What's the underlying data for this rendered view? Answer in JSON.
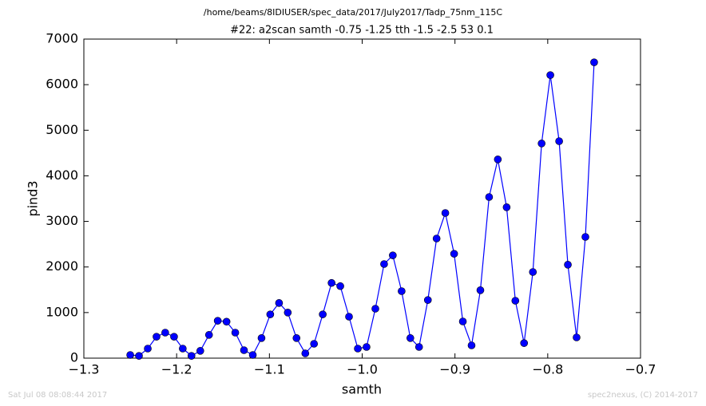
{
  "header": {
    "file": "/home/beams/8IDIUSER/spec_data/2017/July2017/Tadp_75nm_115C"
  },
  "chart_data": {
    "type": "line",
    "title": "#22: a2scan  samth -0.75 -1.25  tth -1.5 -2.5  53 0.1",
    "x_label": "samth",
    "y_label": "pind3",
    "x": [
      -1.25,
      -1.2406,
      -1.2311,
      -1.2217,
      -1.2123,
      -1.2028,
      -1.1934,
      -1.184,
      -1.1745,
      -1.1651,
      -1.1557,
      -1.1462,
      -1.1368,
      -1.1274,
      -1.1179,
      -1.1085,
      -1.0991,
      -1.0896,
      -1.0802,
      -1.0708,
      -1.0613,
      -1.0519,
      -1.0425,
      -1.033,
      -1.0236,
      -1.0142,
      -1.0047,
      -0.9953,
      -0.9858,
      -0.9764,
      -0.967,
      -0.9575,
      -0.9481,
      -0.9387,
      -0.9292,
      -0.9198,
      -0.9104,
      -0.9009,
      -0.8915,
      -0.8821,
      -0.8726,
      -0.8632,
      -0.8538,
      -0.8443,
      -0.8349,
      -0.8255,
      -0.816,
      -0.8066,
      -0.7972,
      -0.7877,
      -0.7783,
      -0.7689,
      -0.7594,
      -0.75
    ],
    "series": [
      {
        "color": "#0000ff",
        "values": [
          70,
          50,
          210,
          470,
          560,
          470,
          210,
          50,
          160,
          510,
          820,
          800,
          560,
          175,
          70,
          440,
          960,
          1210,
          1000,
          440,
          105,
          315,
          960,
          1650,
          1580,
          910,
          210,
          245,
          1085,
          2065,
          2255,
          1470,
          440,
          245,
          1275,
          2625,
          3185,
          2290,
          805,
          280,
          1490,
          3535,
          4360,
          3310,
          1260,
          330,
          1890,
          4710,
          6210,
          4760,
          2050,
          455,
          2660,
          6490
        ]
      }
    ],
    "xlim": [
      -1.3,
      -0.7
    ],
    "xticks": [
      {
        "value": -1.3,
        "label": "−1.3"
      },
      {
        "value": -1.2,
        "label": "−1.2"
      },
      {
        "value": -1.1,
        "label": "−1.1"
      },
      {
        "value": -1.0,
        "label": "−1.0"
      },
      {
        "value": -0.9,
        "label": "−0.9"
      },
      {
        "value": -0.8,
        "label": "−0.8"
      },
      {
        "value": -0.7,
        "label": "−0.7"
      }
    ],
    "ylim": [
      0,
      7000
    ],
    "yticks": [
      0,
      1000,
      2000,
      3000,
      4000,
      5000,
      6000,
      7000
    ]
  },
  "footer": {
    "date": "Sat Jul 08 08:08:44 2017",
    "credit": "spec2nexus, (C) 2014-2017"
  }
}
